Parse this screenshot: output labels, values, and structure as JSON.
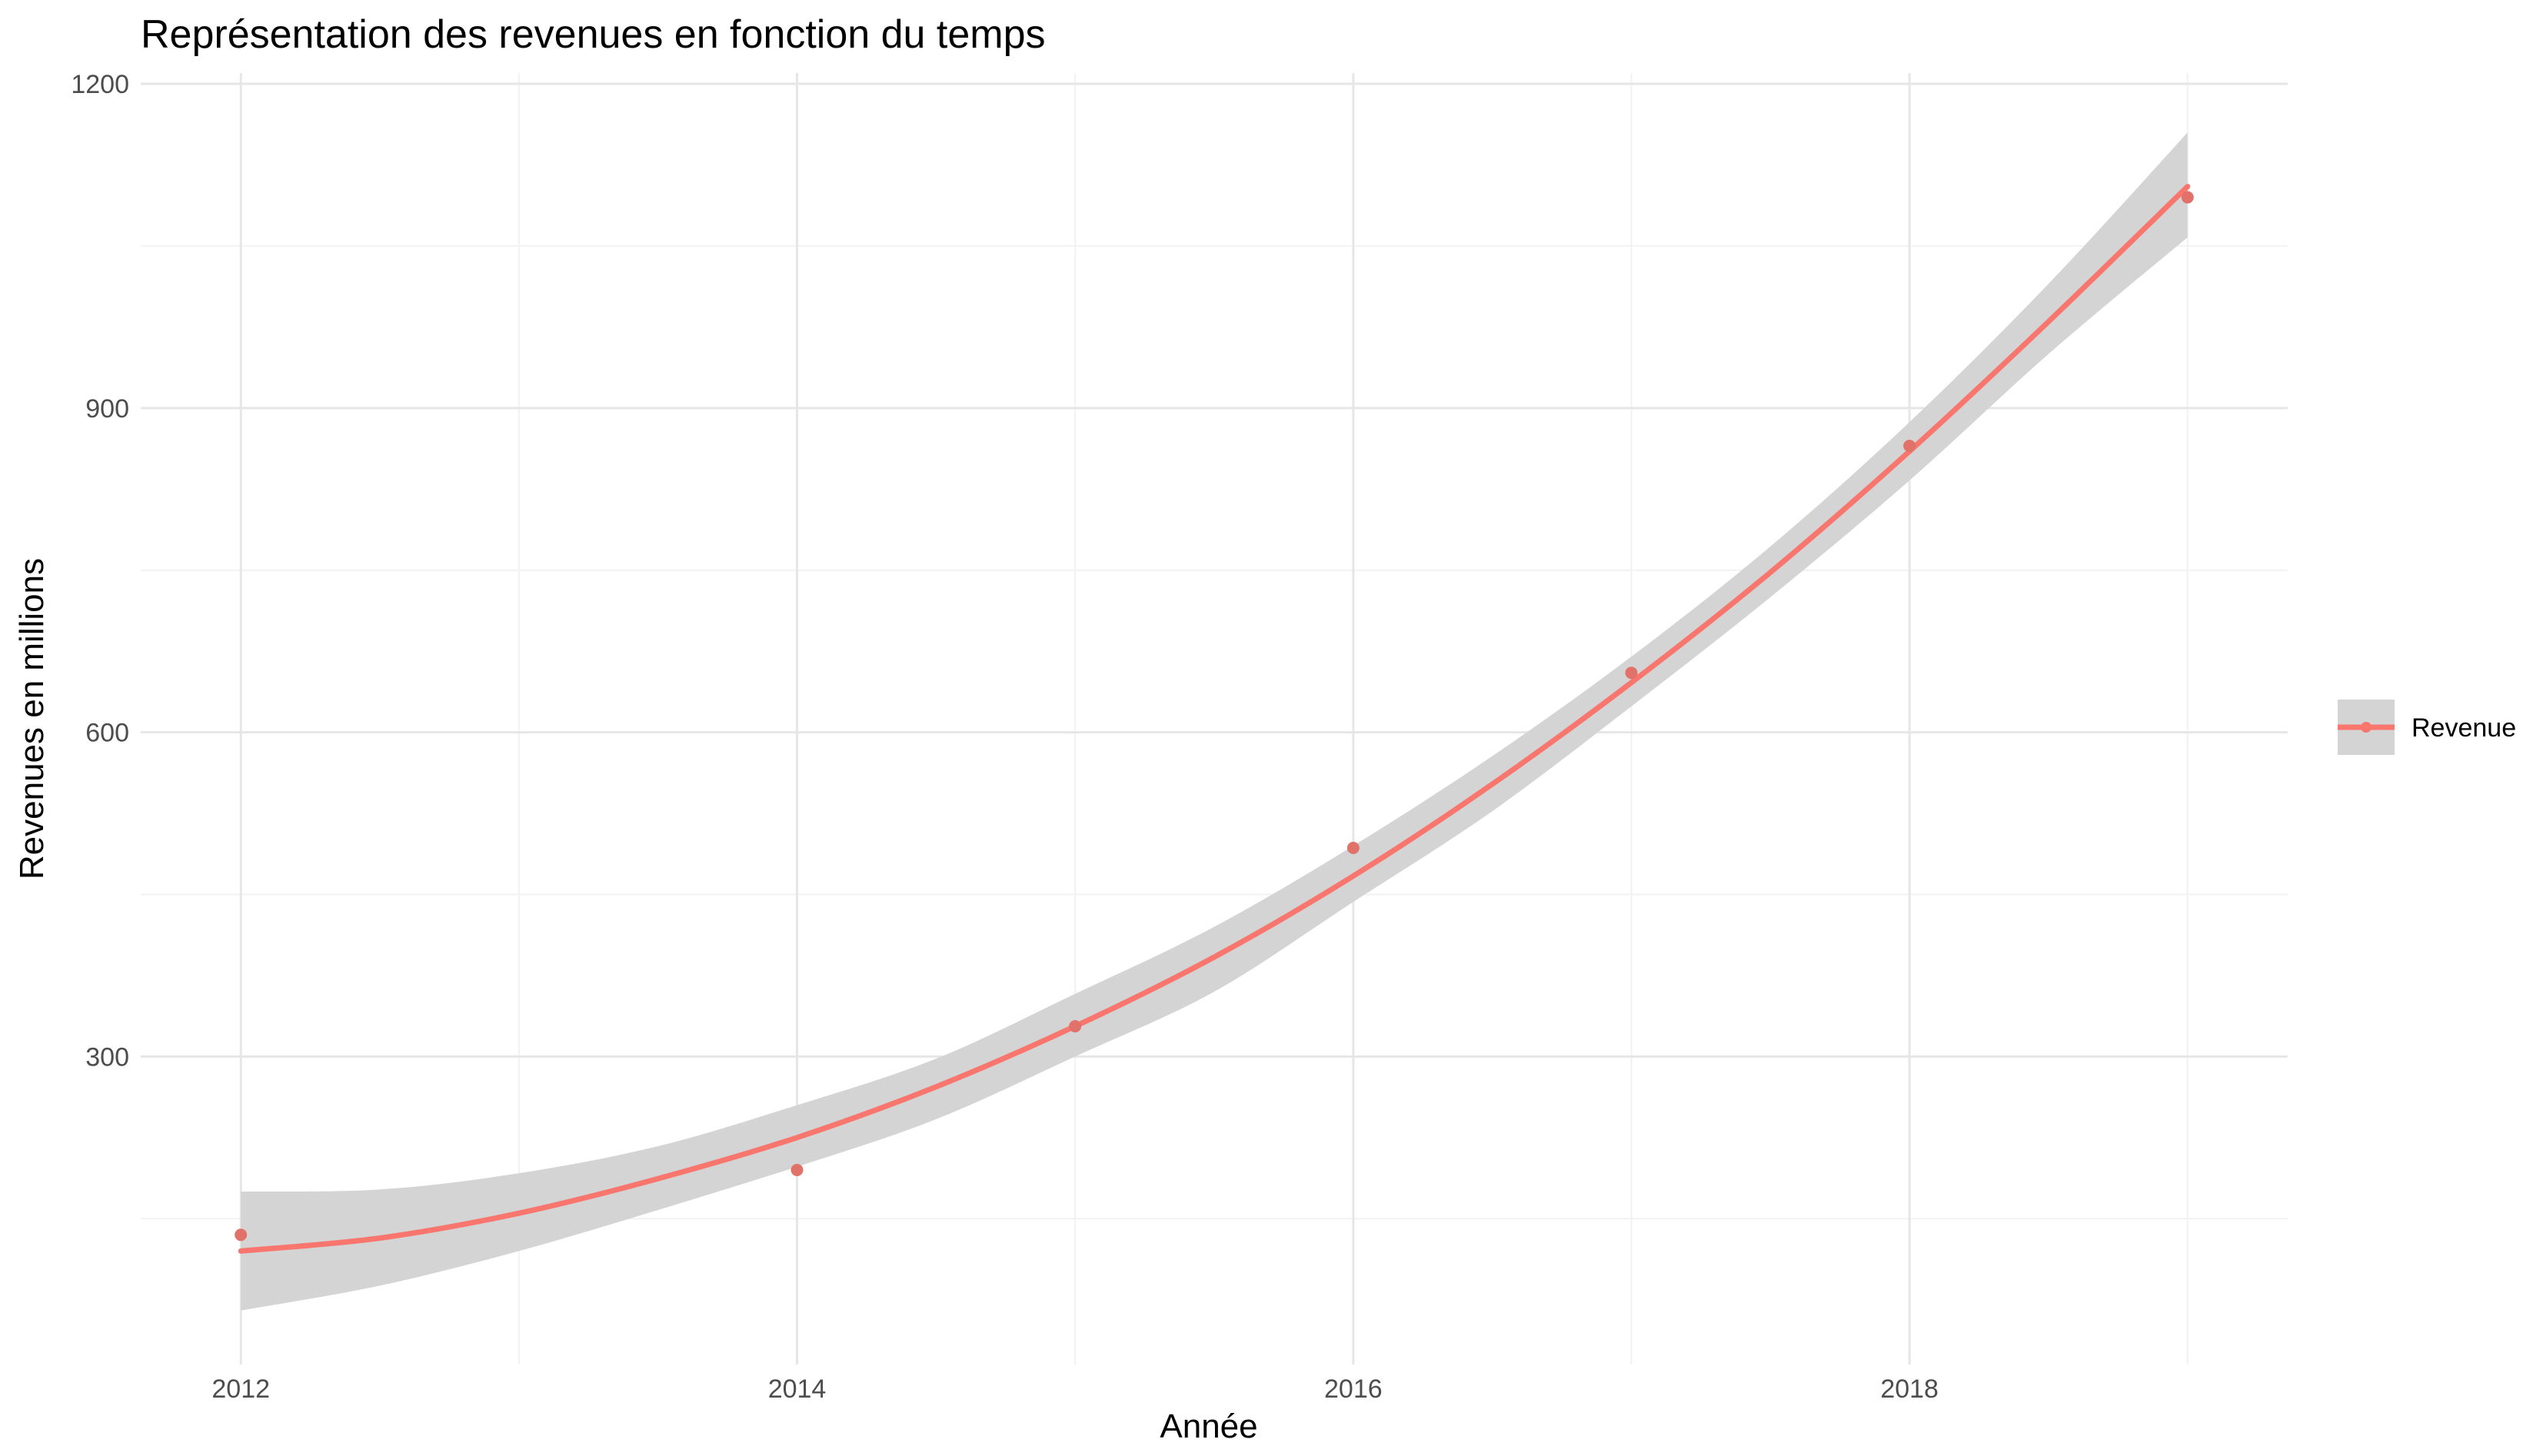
{
  "chart_data": {
    "type": "line",
    "title": "Représentation des revenues en fonction du temps",
    "xlabel": "Année",
    "ylabel": "Revenues en millions",
    "xlim": [
      2011.64,
      2019.36
    ],
    "ylim": [
      15,
      1210
    ],
    "x_ticks": [
      2012,
      2014,
      2016,
      2018
    ],
    "x_tick_labels": [
      "2012",
      "2014",
      "2016",
      "2018"
    ],
    "x_minor_gridlines": [
      2013,
      2015,
      2017,
      2019
    ],
    "y_ticks": [
      300,
      600,
      900,
      1200
    ],
    "y_tick_labels": [
      "300",
      "600",
      "900",
      "1200"
    ],
    "y_minor_gridlines": [
      150,
      450,
      750,
      1050
    ],
    "grid": true,
    "legend_position": "right",
    "series": [
      {
        "name": "Revenue",
        "color": "#F8766D",
        "points": {
          "x": [
            2012,
            2014,
            2015,
            2016,
            2017,
            2018,
            2019
          ],
          "y": [
            135,
            195,
            328,
            493,
            655,
            865,
            1095
          ]
        },
        "smooth": {
          "x": [
            2012,
            2012.5,
            2013,
            2013.5,
            2014,
            2014.5,
            2015,
            2015.5,
            2016,
            2016.5,
            2017,
            2017.5,
            2018,
            2018.5,
            2019
          ],
          "y": [
            120,
            132,
            155,
            187,
            225,
            272,
            328,
            392,
            467,
            552,
            646,
            748,
            860,
            980,
            1105
          ],
          "lower": [
            65,
            88,
            120,
            158,
            198,
            242,
            300,
            360,
            443,
            527,
            624,
            725,
            833,
            950,
            1058
          ],
          "upper": [
            175,
            177,
            192,
            217,
            255,
            298,
            358,
            420,
            495,
            578,
            670,
            772,
            887,
            1015,
            1155
          ]
        }
      }
    ],
    "colors": {
      "band": "#d4d4d4",
      "grid_major": "#e6e6e6",
      "grid_minor": "#f2f2f2",
      "line": "#F8766D",
      "point": "#e0726a"
    }
  }
}
